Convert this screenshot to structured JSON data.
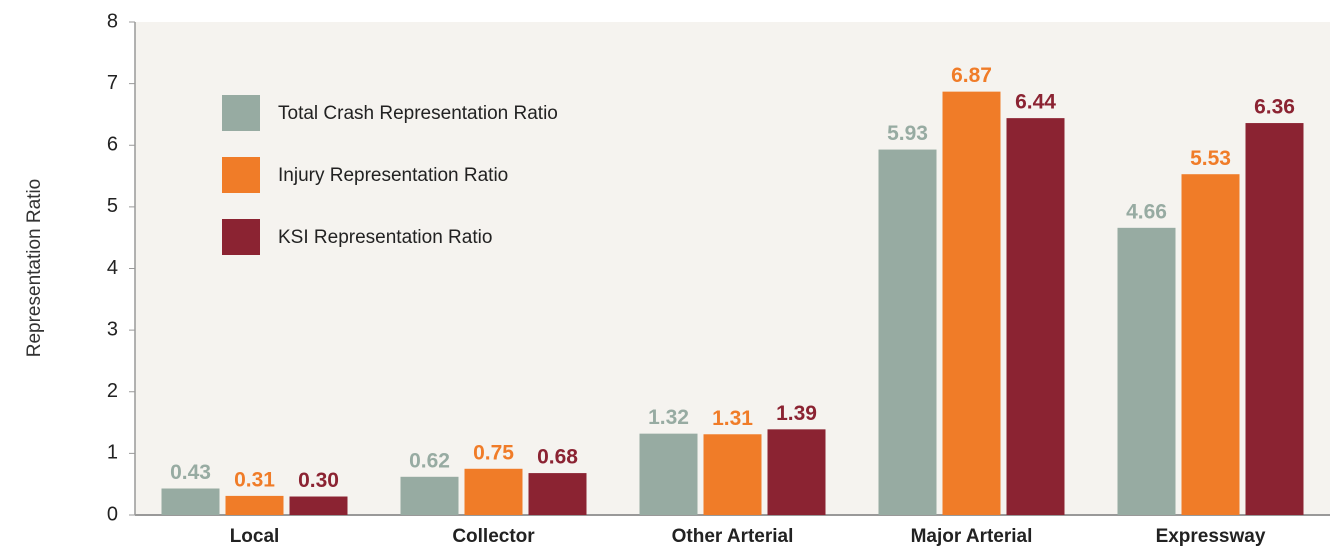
{
  "chart_data": {
    "type": "bar",
    "ylabel": "Representation Ratio",
    "categories": [
      "Local",
      "Collector",
      "Other Arterial",
      "Major Arterial",
      "Expressway"
    ],
    "series": [
      {
        "name": "Total Crash Representation Ratio",
        "color": "#97aba2",
        "values": [
          0.43,
          0.62,
          1.32,
          5.93,
          4.66
        ],
        "value_labels": [
          "0.43",
          "0.62",
          "1.32",
          "5.93",
          "4.66"
        ]
      },
      {
        "name": "Injury Representation Ratio",
        "color": "#f07c28",
        "values": [
          0.31,
          0.75,
          1.31,
          6.87,
          5.53
        ],
        "value_labels": [
          "0.31",
          "0.75",
          "1.31",
          "6.87",
          "5.53"
        ]
      },
      {
        "name": "KSI Representation Ratio",
        "color": "#8b2332",
        "values": [
          0.3,
          0.68,
          1.39,
          6.44,
          6.36
        ],
        "value_labels": [
          "0.30",
          "0.68",
          "1.39",
          "6.44",
          "6.36"
        ]
      }
    ],
    "ylim": [
      0,
      8
    ],
    "yticks": [
      0,
      1,
      2,
      3,
      4,
      5,
      6,
      7,
      8
    ],
    "grid": false,
    "legend": "top-left"
  }
}
